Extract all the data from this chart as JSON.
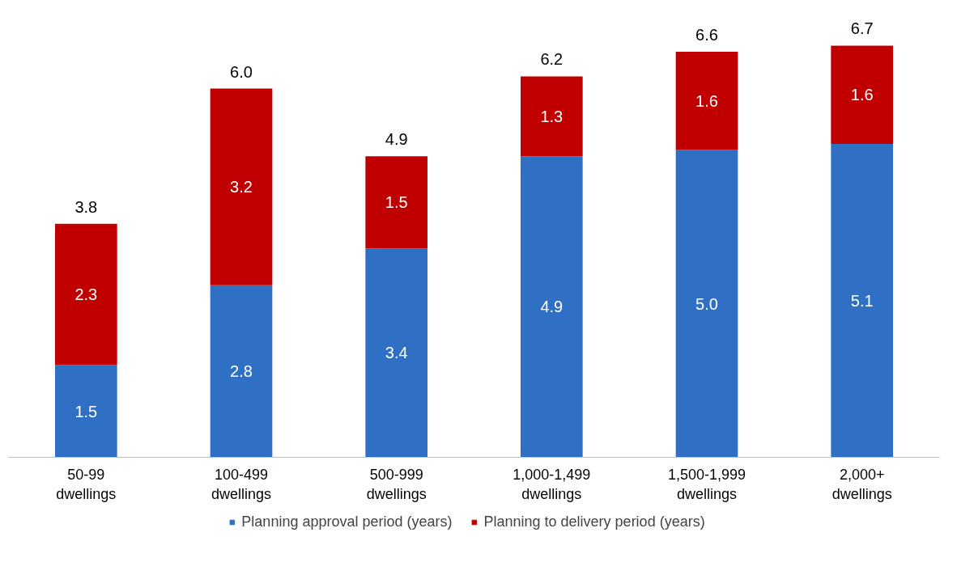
{
  "chart_data": {
    "type": "bar",
    "stacked": true,
    "categories": [
      "50-99\ndwellings",
      "100-499\ndwellings",
      "500-999\ndwellings",
      "1,000-1,499\ndwellings",
      "1,500-1,999\ndwellings",
      "2,000+\ndwellings"
    ],
    "series": [
      {
        "name": "Planning approval period (years)",
        "color": "#3070c4",
        "values": [
          1.5,
          2.8,
          3.4,
          4.9,
          5.0,
          5.1
        ],
        "value_labels": [
          "1.5",
          "2.8",
          "3.4",
          "4.9",
          "5.0",
          "5.1"
        ]
      },
      {
        "name": "Planning to delivery period (years)",
        "color": "#c00000",
        "values": [
          2.3,
          3.2,
          1.5,
          1.3,
          1.6,
          1.6
        ],
        "value_labels": [
          "2.3",
          "3.2",
          "1.5",
          "1.3",
          "1.6",
          "1.6"
        ]
      }
    ],
    "totals": [
      "3.8",
      "6.0",
      "4.9",
      "6.2",
      "6.6",
      "6.7"
    ],
    "legend": "bottom",
    "grid": false,
    "tick_labels": "x"
  }
}
